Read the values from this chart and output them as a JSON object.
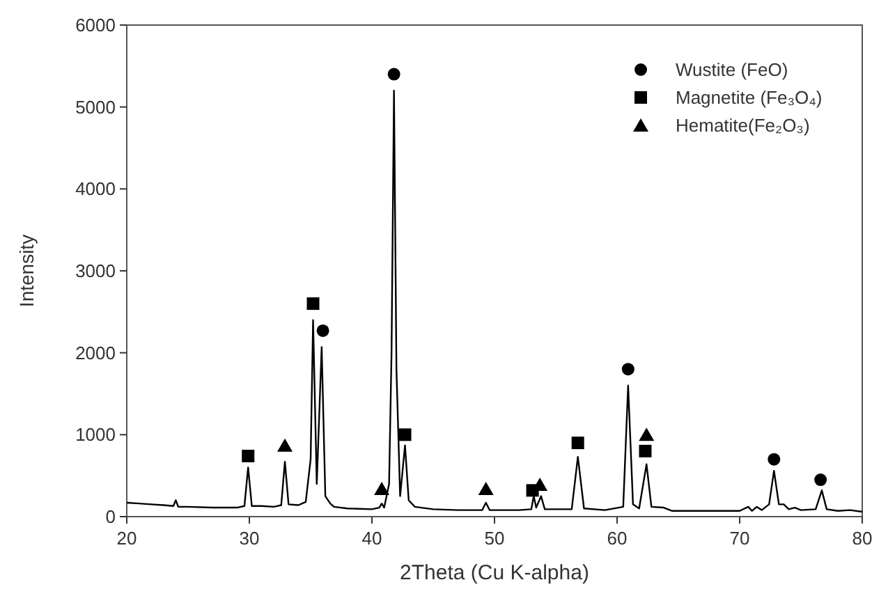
{
  "chart_data": {
    "type": "line",
    "xlabel": "2Theta (Cu K-alpha)",
    "ylabel": "Intensity",
    "xlim": [
      20,
      80
    ],
    "xticks": [
      20,
      30,
      40,
      50,
      60,
      70,
      80
    ],
    "ylim": [
      0,
      6000
    ],
    "yticks": [
      0,
      1000,
      2000,
      3000,
      4000,
      5000,
      6000
    ],
    "grid": false,
    "legend": "top right",
    "series": [
      {
        "color": "#000000",
        "marker": "none",
        "x": [
          20,
          21,
          22,
          23,
          23.8,
          24,
          24.2,
          25,
          27,
          29,
          29.6,
          29.9,
          30.2,
          31,
          32,
          32.6,
          32.9,
          33.2,
          34,
          34.6,
          35,
          35.2,
          35.5,
          35.9,
          36.2,
          36.6,
          36.9,
          38,
          40,
          40.6,
          40.8,
          41,
          41.4,
          41.6,
          41.8,
          42,
          42.3,
          42.7,
          43,
          43.5,
          45,
          47,
          49,
          49.3,
          49.6,
          52,
          53,
          53.2,
          53.4,
          53.8,
          54.1,
          56.3,
          56.8,
          57.3,
          59,
          60.5,
          60.9,
          61.3,
          61.8,
          62.4,
          62.8,
          63.8,
          64.5,
          67,
          70,
          70.7,
          71,
          71.4,
          71.8,
          72.4,
          72.8,
          73.2,
          73.6,
          74,
          74.5,
          75,
          76.2,
          76.7,
          77.1,
          78,
          79,
          80
        ],
        "values": [
          170,
          160,
          150,
          140,
          130,
          200,
          120,
          120,
          110,
          110,
          130,
          600,
          130,
          130,
          120,
          140,
          670,
          150,
          140,
          180,
          700,
          2400,
          400,
          2070,
          250,
          160,
          120,
          100,
          90,
          110,
          160,
          110,
          400,
          2000,
          5200,
          1800,
          250,
          870,
          200,
          120,
          90,
          80,
          80,
          170,
          80,
          80,
          90,
          250,
          110,
          250,
          90,
          90,
          730,
          100,
          80,
          120,
          1600,
          150,
          100,
          640,
          120,
          110,
          70,
          70,
          70,
          120,
          70,
          120,
          80,
          150,
          560,
          150,
          150,
          90,
          110,
          80,
          90,
          320,
          90,
          70,
          80,
          60
        ]
      },
      {
        "type": "scatter",
        "name": "Wustite (FeO)",
        "color": "#000000",
        "marker": "circle",
        "x": [
          41.8,
          36,
          60.9,
          72.8,
          76.6
        ],
        "values": [
          5400,
          2270,
          1800,
          700,
          450
        ]
      },
      {
        "type": "scatter",
        "name": "Magnetite (Fe₃O₄)",
        "color": "#000000",
        "marker": "square",
        "x": [
          29.9,
          35.2,
          42.7,
          53.1,
          56.8,
          62.3
        ],
        "values": [
          740,
          2600,
          1000,
          320,
          900,
          800
        ]
      },
      {
        "type": "scatter",
        "name": "Hematite(Fe₂O₃)",
        "color": "#000000",
        "marker": "triangle",
        "x": [
          32.9,
          40.8,
          49.3,
          53.7,
          62.4
        ],
        "values": [
          870,
          340,
          340,
          390,
          1000
        ]
      }
    ]
  }
}
